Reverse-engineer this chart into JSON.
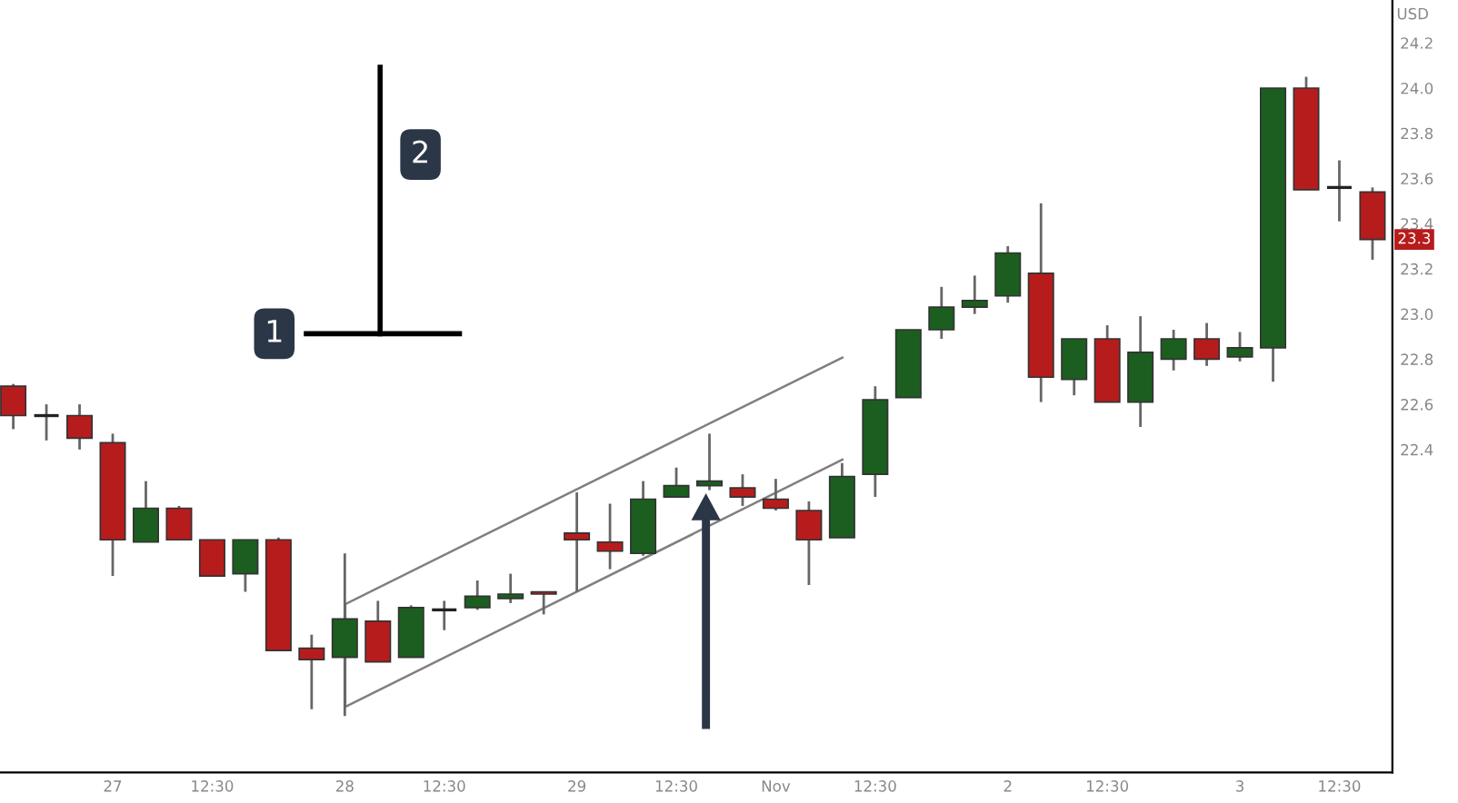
{
  "chart_data": {
    "type": "candlestick",
    "categories": [
      null,
      null,
      null,
      "27",
      null,
      null,
      "12:30",
      null,
      null,
      null,
      "28",
      null,
      null,
      "12:30",
      null,
      null,
      null,
      "29",
      null,
      null,
      "12:30",
      null,
      null,
      "Nov",
      null,
      null,
      "12:30",
      null,
      null,
      null,
      "2",
      null,
      null,
      "12:30",
      null,
      null,
      null,
      "3",
      null,
      null,
      "12:30",
      null
    ],
    "ohlc": [
      [
        22.68,
        22.69,
        22.49,
        22.55
      ],
      [
        22.55,
        22.6,
        22.44,
        22.55
      ],
      [
        22.55,
        22.6,
        22.4,
        22.45
      ],
      [
        22.43,
        22.47,
        21.84,
        22.0
      ],
      [
        21.99,
        22.26,
        21.99,
        22.14
      ],
      [
        22.14,
        22.15,
        22.0,
        22.0
      ],
      [
        22.0,
        22.0,
        21.84,
        21.84
      ],
      [
        21.85,
        22.0,
        21.77,
        22.0
      ],
      [
        22.0,
        22.01,
        21.51,
        21.51
      ],
      [
        21.52,
        21.58,
        21.25,
        21.47
      ],
      [
        21.48,
        21.94,
        21.22,
        21.65
      ],
      [
        21.64,
        21.73,
        21.46,
        21.46
      ],
      [
        21.48,
        21.71,
        21.48,
        21.7
      ],
      [
        21.69,
        21.73,
        21.6,
        21.69
      ],
      [
        21.7,
        21.82,
        21.69,
        21.75
      ],
      [
        21.74,
        21.85,
        21.72,
        21.76
      ],
      [
        21.77,
        21.77,
        21.67,
        21.76
      ],
      [
        22.03,
        22.21,
        21.77,
        22.0
      ],
      [
        21.99,
        22.16,
        21.87,
        21.95
      ],
      [
        21.94,
        22.26,
        21.93,
        22.18
      ],
      [
        22.19,
        22.32,
        22.19,
        22.24
      ],
      [
        22.24,
        22.47,
        22.22,
        22.26
      ],
      [
        22.23,
        22.29,
        22.15,
        22.19
      ],
      [
        22.18,
        22.27,
        22.13,
        22.14
      ],
      [
        22.13,
        22.17,
        21.8,
        22.0
      ],
      [
        22.01,
        22.34,
        22.01,
        22.28
      ],
      [
        22.29,
        22.68,
        22.19,
        22.62
      ],
      [
        22.63,
        22.93,
        22.63,
        22.93
      ],
      [
        22.93,
        23.12,
        22.89,
        23.03
      ],
      [
        23.03,
        23.17,
        23.0,
        23.06
      ],
      [
        23.08,
        23.3,
        23.05,
        23.27
      ],
      [
        23.18,
        23.49,
        22.61,
        22.72
      ],
      [
        22.71,
        22.89,
        22.64,
        22.89
      ],
      [
        22.89,
        22.95,
        22.61,
        22.61
      ],
      [
        22.61,
        22.99,
        22.5,
        22.83
      ],
      [
        22.8,
        22.93,
        22.75,
        22.89
      ],
      [
        22.89,
        22.96,
        22.77,
        22.8
      ],
      [
        22.81,
        22.92,
        22.79,
        22.85
      ],
      [
        22.85,
        24.0,
        22.7,
        24.0
      ],
      [
        24.0,
        24.05,
        23.55,
        23.55
      ],
      [
        23.56,
        23.68,
        23.41,
        23.56
      ],
      [
        23.54,
        23.56,
        23.24,
        23.33
      ]
    ],
    "colors": [
      "#b71c1c",
      "#222222",
      "#b71c1c",
      "#b71c1c",
      "#1b5e20",
      "#b71c1c",
      "#b71c1c",
      "#1b5e20",
      "#b71c1c",
      "#b71c1c",
      "#1b5e20",
      "#b71c1c",
      "#1b5e20",
      "#222222",
      "#1b5e20",
      "#1b5e20",
      "#b71c1c",
      "#b71c1c",
      "#b71c1c",
      "#1b5e20",
      "#1b5e20",
      "#1b5e20",
      "#b71c1c",
      "#b71c1c",
      "#b71c1c",
      "#1b5e20",
      "#1b5e20",
      "#1b5e20",
      "#1b5e20",
      "#1b5e20",
      "#1b5e20",
      "#b71c1c",
      "#1b5e20",
      "#b71c1c",
      "#1b5e20",
      "#1b5e20",
      "#b71c1c",
      "#1b5e20",
      "#1b5e20",
      "#b71c1c",
      "#222222",
      "#b71c1c"
    ],
    "ylim": [
      20.97,
      24.39
    ],
    "yticks": [
      22.4,
      22.6,
      22.8,
      {
        "value": 23.0,
        "label": "23.0"
      },
      23.2,
      23.4,
      23.6,
      23.8,
      {
        "value": 24.0,
        "label": "24.0"
      },
      24.2
    ],
    "annotations": [
      "1",
      "2",
      "USD",
      {
        "text": "23.3",
        "y": 23.33
      }
    ]
  }
}
